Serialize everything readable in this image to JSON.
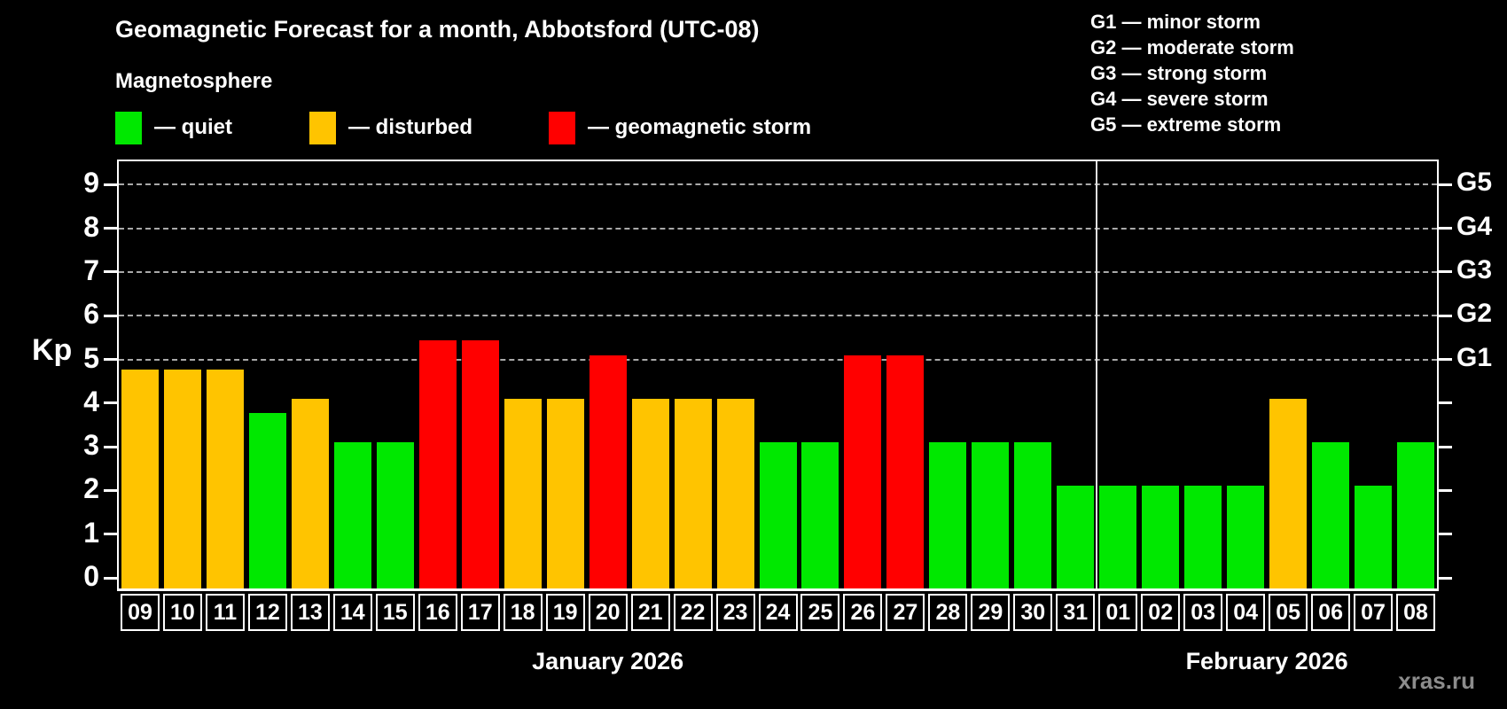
{
  "header": {
    "title": "Geomagnetic Forecast for a month, Abbotsford (UTC-08)",
    "subtitle": "Magnetosphere"
  },
  "legend": {
    "items": [
      {
        "key": "quiet",
        "label": "— quiet",
        "color": "#00e800"
      },
      {
        "key": "disturbed",
        "label": "— disturbed",
        "color": "#ffc400"
      },
      {
        "key": "storm",
        "label": "— geomagnetic storm",
        "color": "#ff0000"
      }
    ]
  },
  "g_scale_legend": {
    "lines": [
      "G1 — minor storm",
      "G2 — moderate storm",
      "G3 — strong storm",
      "G4 — severe storm",
      "G5 — extreme storm"
    ]
  },
  "axis": {
    "kp_label": "Kp"
  },
  "watermark": "xras.ru",
  "chart_data": {
    "type": "bar",
    "title": "Geomagnetic Forecast for a month, Abbotsford (UTC-08)",
    "ylabel": "Kp",
    "ylim": [
      0,
      9
    ],
    "y_ticks": [
      0,
      1,
      2,
      3,
      4,
      5,
      6,
      7,
      8,
      9
    ],
    "gridlines_at_kp": [
      5,
      6,
      7,
      8,
      9
    ],
    "grid": "dashed horizontal at storm levels only",
    "legend_position": "top",
    "status_colors": {
      "quiet": "#00e800",
      "disturbed": "#ffc400",
      "storm": "#ff0000"
    },
    "right_axis_labels": [
      {
        "label": "G1",
        "kp": 5
      },
      {
        "label": "G2",
        "kp": 6
      },
      {
        "label": "G3",
        "kp": 7
      },
      {
        "label": "G4",
        "kp": 8
      },
      {
        "label": "G5",
        "kp": 9
      }
    ],
    "months": [
      {
        "label": "January 2026",
        "days": 23
      },
      {
        "label": "February 2026",
        "days": 8
      }
    ],
    "bars": [
      {
        "date": "09",
        "kp": 4.67,
        "status": "disturbed"
      },
      {
        "date": "10",
        "kp": 4.67,
        "status": "disturbed"
      },
      {
        "date": "11",
        "kp": 4.67,
        "status": "disturbed"
      },
      {
        "date": "12",
        "kp": 3.67,
        "status": "quiet"
      },
      {
        "date": "13",
        "kp": 4,
        "status": "disturbed"
      },
      {
        "date": "14",
        "kp": 3,
        "status": "quiet"
      },
      {
        "date": "15",
        "kp": 3,
        "status": "quiet"
      },
      {
        "date": "16",
        "kp": 5.33,
        "status": "storm"
      },
      {
        "date": "17",
        "kp": 5.33,
        "status": "storm"
      },
      {
        "date": "18",
        "kp": 4,
        "status": "disturbed"
      },
      {
        "date": "19",
        "kp": 4,
        "status": "disturbed"
      },
      {
        "date": "20",
        "kp": 5,
        "status": "storm"
      },
      {
        "date": "21",
        "kp": 4,
        "status": "disturbed"
      },
      {
        "date": "22",
        "kp": 4,
        "status": "disturbed"
      },
      {
        "date": "23",
        "kp": 4,
        "status": "disturbed"
      },
      {
        "date": "24",
        "kp": 3,
        "status": "quiet"
      },
      {
        "date": "25",
        "kp": 3,
        "status": "quiet"
      },
      {
        "date": "26",
        "kp": 5,
        "status": "storm"
      },
      {
        "date": "27",
        "kp": 5,
        "status": "storm"
      },
      {
        "date": "28",
        "kp": 3,
        "status": "quiet"
      },
      {
        "date": "29",
        "kp": 3,
        "status": "quiet"
      },
      {
        "date": "30",
        "kp": 3,
        "status": "quiet"
      },
      {
        "date": "31",
        "kp": 2,
        "status": "quiet"
      },
      {
        "date": "01",
        "kp": 2,
        "status": "quiet"
      },
      {
        "date": "02",
        "kp": 2,
        "status": "quiet"
      },
      {
        "date": "03",
        "kp": 2,
        "status": "quiet"
      },
      {
        "date": "04",
        "kp": 2,
        "status": "quiet"
      },
      {
        "date": "05",
        "kp": 4,
        "status": "disturbed"
      },
      {
        "date": "06",
        "kp": 3,
        "status": "quiet"
      },
      {
        "date": "07",
        "kp": 2,
        "status": "quiet"
      },
      {
        "date": "08",
        "kp": 3,
        "status": "quiet"
      }
    ]
  }
}
